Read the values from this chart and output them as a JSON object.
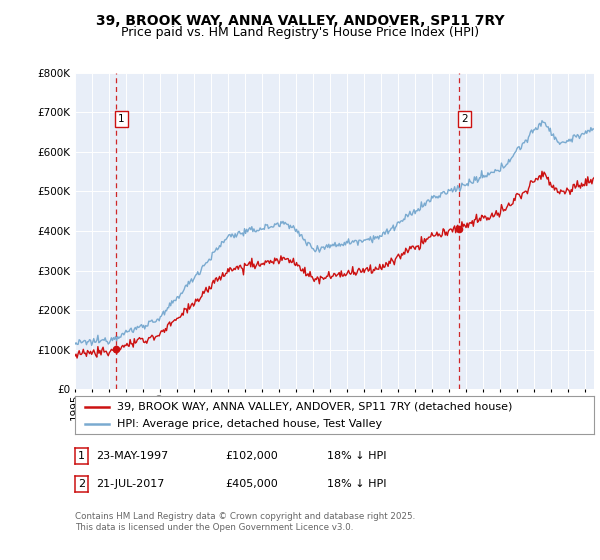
{
  "title": "39, BROOK WAY, ANNA VALLEY, ANDOVER, SP11 7RY",
  "subtitle": "Price paid vs. HM Land Registry's House Price Index (HPI)",
  "hpi_label": "HPI: Average price, detached house, Test Valley",
  "property_label": "39, BROOK WAY, ANNA VALLEY, ANDOVER, SP11 7RY (detached house)",
  "sale1_date": "23-MAY-1997",
  "sale1_price": 102000,
  "sale1_hpi_text": "18% ↓ HPI",
  "sale2_date": "21-JUL-2017",
  "sale2_price": 405000,
  "sale2_hpi_text": "18% ↓ HPI",
  "sale1_year": 1997.39,
  "sale2_year": 2017.55,
  "hpi_color": "#7aaad0",
  "property_color": "#cc1111",
  "dot_color": "#cc1111",
  "vline_color": "#cc1111",
  "plot_bg": "#e8eef8",
  "ylim_min": 0,
  "ylim_max": 800000,
  "xlim_start": 1995.0,
  "xlim_end": 2025.5,
  "ytick_interval": 100000,
  "footer": "Contains HM Land Registry data © Crown copyright and database right 2025.\nThis data is licensed under the Open Government Licence v3.0.",
  "title_fontsize": 10,
  "subtitle_fontsize": 9,
  "legend_fontsize": 8,
  "tick_fontsize": 7.5,
  "sale_info_fontsize": 8
}
